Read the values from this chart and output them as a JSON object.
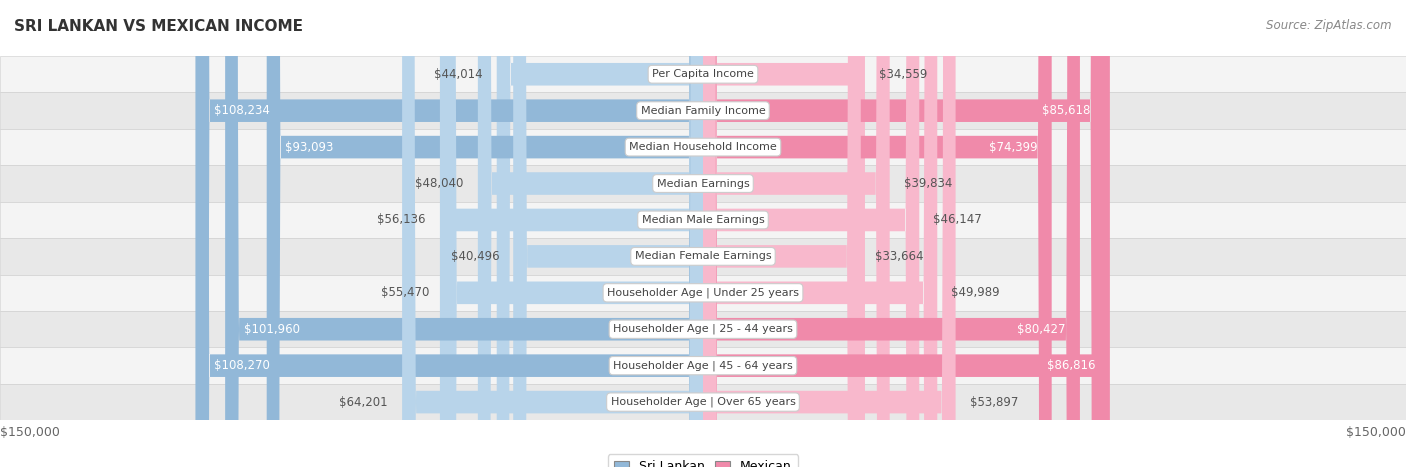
{
  "title": "SRI LANKAN VS MEXICAN INCOME",
  "source": "Source: ZipAtlas.com",
  "categories": [
    "Per Capita Income",
    "Median Family Income",
    "Median Household Income",
    "Median Earnings",
    "Median Male Earnings",
    "Median Female Earnings",
    "Householder Age | Under 25 years",
    "Householder Age | 25 - 44 years",
    "Householder Age | 45 - 64 years",
    "Householder Age | Over 65 years"
  ],
  "sri_lankan": [
    44014,
    108234,
    93093,
    48040,
    56136,
    40496,
    55470,
    101960,
    108270,
    64201
  ],
  "mexican": [
    34559,
    85618,
    74399,
    39834,
    46147,
    33664,
    49989,
    80427,
    86816,
    53897
  ],
  "max_val": 150000,
  "sri_lankan_color": "#92b8d8",
  "mexican_color": "#f08aaa",
  "sri_lankan_light_color": "#b8d4ea",
  "mexican_light_color": "#f8b8cc",
  "label_threshold": 65000,
  "bar_height": 0.58,
  "row_colors": [
    "#f4f4f4",
    "#e8e8e8"
  ],
  "label_fontsize": 8.5,
  "title_fontsize": 11,
  "source_fontsize": 8.5,
  "legend_sri_lankan_color": "#92b8d8",
  "legend_mexican_color": "#f08aaa"
}
